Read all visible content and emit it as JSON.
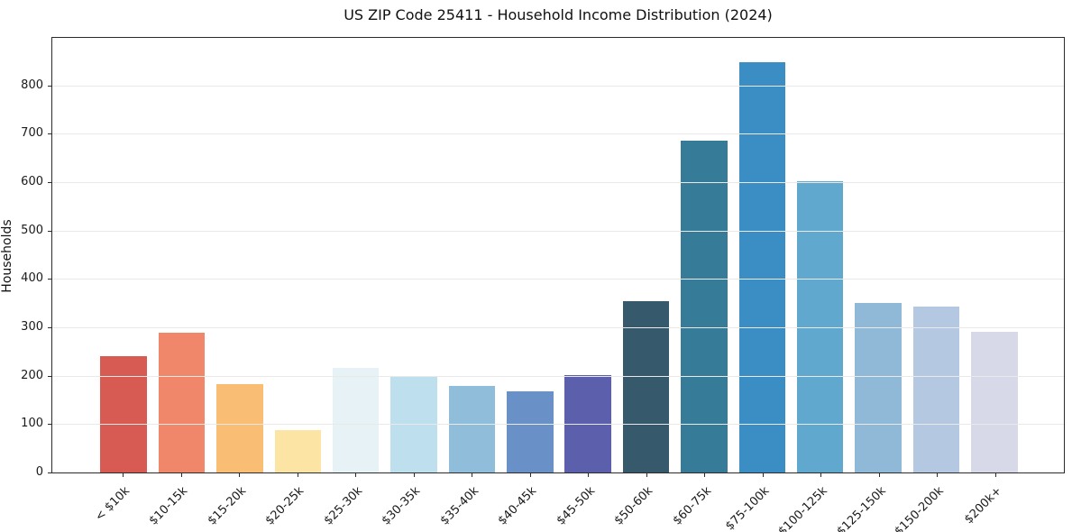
{
  "chart_data": {
    "type": "bar",
    "title": "US ZIP Code 25411 - Household Income Distribution (2024)",
    "xlabel": "",
    "ylabel": "Households",
    "categories": [
      "< $10k",
      "$10-15k",
      "$15-20k",
      "$20-25k",
      "$25-30k",
      "$30-35k",
      "$35-40k",
      "$40-45k",
      "$45-50k",
      "$50-60k",
      "$60-75k",
      "$75-100k",
      "$100-125k",
      "$125-150k",
      "$150-200k",
      "$200k+"
    ],
    "values": [
      240,
      288,
      182,
      87,
      216,
      199,
      179,
      168,
      202,
      354,
      685,
      848,
      602,
      350,
      342,
      290
    ],
    "bar_colors": [
      "#d75b52",
      "#f0876b",
      "#f9bd74",
      "#fce5a4",
      "#e7f2f6",
      "#bedfee",
      "#90bdda",
      "#6991c7",
      "#5c5fab",
      "#36596c",
      "#367b97",
      "#3a8ec4",
      "#61a8ce",
      "#90b8d7",
      "#b5c8e1",
      "#d8d9e8"
    ],
    "yticks": [
      0,
      100,
      200,
      300,
      400,
      500,
      600,
      700,
      800
    ],
    "ylim": [
      0,
      898
    ],
    "grid": "horizontal-only",
    "gridline_color": "#e9e9e9",
    "legend": "none",
    "x_tick_rotation": 45
  }
}
